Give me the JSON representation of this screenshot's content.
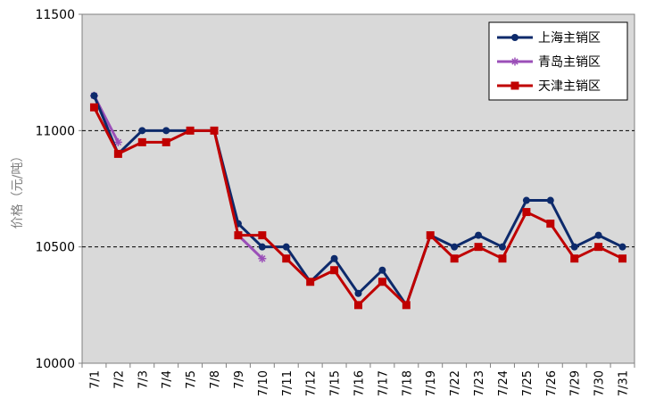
{
  "chart_data": {
    "type": "line",
    "title": "",
    "xlabel": "",
    "ylabel": "价格（元/吨）",
    "ylim": [
      10000,
      11500
    ],
    "yticks": [
      10000,
      10500,
      11000,
      11500
    ],
    "grid": "dashed horizontal lines at 10500 and 11000",
    "legend_position": "top-right",
    "categories": [
      "7/1",
      "7/2",
      "7/3",
      "7/4",
      "7/5",
      "7/8",
      "7/9",
      "7/10",
      "7/11",
      "7/12",
      "7/15",
      "7/16",
      "7/17",
      "7/18",
      "7/19",
      "7/22",
      "7/23",
      "7/24",
      "7/25",
      "7/26",
      "7/29",
      "7/30",
      "7/31"
    ],
    "series": [
      {
        "name": "上海主销区",
        "color": "#0D2A6B",
        "marker": "circle",
        "values": [
          11150,
          10900,
          11000,
          11000,
          11000,
          11000,
          10600,
          10500,
          10500,
          10350,
          10450,
          10300,
          10400,
          10250,
          10550,
          10500,
          10550,
          10500,
          10700,
          10700,
          10500,
          10550,
          10500
        ]
      },
      {
        "name": "青岛主销区",
        "color": "#9B4FB8",
        "marker": "asterisk",
        "values": [
          11150,
          10950,
          null,
          null,
          null,
          null,
          10550,
          10450,
          null,
          null,
          null,
          null,
          null,
          null,
          null,
          null,
          null,
          null,
          null,
          null,
          null,
          null,
          null
        ]
      },
      {
        "name": "天津主销区",
        "color": "#C00000",
        "marker": "square",
        "values": [
          11100,
          10900,
          10950,
          10950,
          11000,
          11000,
          10550,
          10550,
          10450,
          10350,
          10400,
          10250,
          10350,
          10250,
          10550,
          10450,
          10500,
          10450,
          10650,
          10600,
          10450,
          10500,
          10450
        ]
      }
    ]
  }
}
